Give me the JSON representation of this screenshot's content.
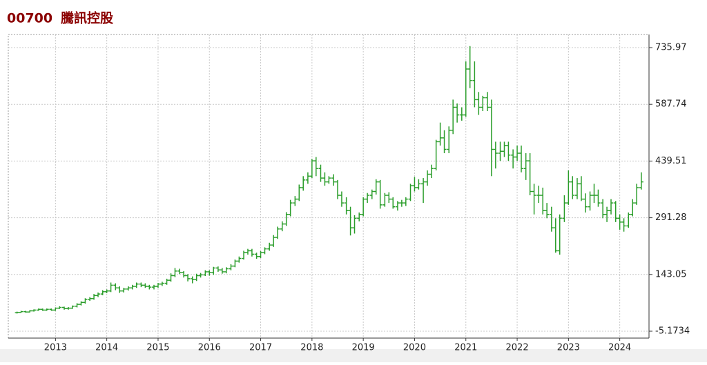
{
  "chart_data": {
    "type": "ohlc",
    "code": "00700",
    "name": "騰訊控股",
    "color": "#2a9d2a",
    "grid": true,
    "ylim": [
      -23.2,
      770.2
    ],
    "xlim": [
      2012.08,
      2024.57
    ],
    "yticks": [
      -5.1734,
      143.05,
      291.28,
      439.51,
      587.74,
      735.97
    ],
    "xticks": [
      2013,
      2014,
      2015,
      2016,
      2017,
      2018,
      2019,
      2020,
      2021,
      2022,
      2023,
      2024
    ],
    "x": [
      2012.25,
      2012.33,
      2012.42,
      2012.5,
      2012.58,
      2012.67,
      2012.75,
      2012.83,
      2012.92,
      2013,
      2013.08,
      2013.17,
      2013.25,
      2013.33,
      2013.42,
      2013.5,
      2013.58,
      2013.67,
      2013.75,
      2013.83,
      2013.92,
      2014,
      2014.08,
      2014.17,
      2014.25,
      2014.33,
      2014.42,
      2014.5,
      2014.58,
      2014.67,
      2014.75,
      2014.83,
      2014.92,
      2015,
      2015.08,
      2015.17,
      2015.25,
      2015.33,
      2015.42,
      2015.5,
      2015.58,
      2015.67,
      2015.75,
      2015.83,
      2015.92,
      2016,
      2016.08,
      2016.17,
      2016.25,
      2016.33,
      2016.42,
      2016.5,
      2016.58,
      2016.67,
      2016.75,
      2016.83,
      2016.92,
      2017,
      2017.08,
      2017.17,
      2017.25,
      2017.33,
      2017.42,
      2017.5,
      2017.58,
      2017.67,
      2017.75,
      2017.83,
      2017.92,
      2018,
      2018.08,
      2018.17,
      2018.25,
      2018.33,
      2018.42,
      2018.5,
      2018.58,
      2018.67,
      2018.75,
      2018.83,
      2018.92,
      2019,
      2019.08,
      2019.17,
      2019.25,
      2019.33,
      2019.42,
      2019.5,
      2019.58,
      2019.67,
      2019.75,
      2019.83,
      2019.92,
      2020,
      2020.08,
      2020.17,
      2020.25,
      2020.33,
      2020.42,
      2020.5,
      2020.58,
      2020.67,
      2020.75,
      2020.83,
      2020.92,
      2021,
      2021.08,
      2021.17,
      2021.25,
      2021.33,
      2021.42,
      2021.5,
      2021.58,
      2021.67,
      2021.75,
      2021.83,
      2021.92,
      2022,
      2022.08,
      2022.17,
      2022.25,
      2022.33,
      2022.42,
      2022.5,
      2022.58,
      2022.67,
      2022.75,
      2022.83,
      2022.92,
      2023,
      2023.08,
      2023.17,
      2023.25,
      2023.33,
      2023.42,
      2023.5,
      2023.58,
      2023.67,
      2023.75,
      2023.83,
      2023.92,
      2024,
      2024.08,
      2024.17,
      2024.25,
      2024.33,
      2024.42
    ],
    "open": [
      43,
      44,
      46,
      45,
      48,
      50,
      52,
      50,
      52,
      50,
      55,
      57,
      54,
      55,
      60,
      65,
      70,
      78,
      80,
      88,
      92,
      98,
      100,
      115,
      108,
      100,
      105,
      108,
      112,
      118,
      115,
      112,
      110,
      112,
      118,
      120,
      128,
      140,
      152,
      148,
      140,
      132,
      130,
      140,
      142,
      150,
      148,
      160,
      155,
      150,
      158,
      165,
      178,
      185,
      200,
      205,
      196,
      190,
      200,
      210,
      220,
      240,
      262,
      275,
      300,
      330,
      340,
      370,
      390,
      400,
      440,
      420,
      395,
      385,
      395,
      385,
      350,
      330,
      310,
      265,
      290,
      300,
      340,
      350,
      360,
      385,
      325,
      350,
      340,
      320,
      330,
      330,
      340,
      375,
      370,
      380,
      385,
      405,
      420,
      490,
      500,
      470,
      520,
      580,
      560,
      560,
      680,
      650,
      600,
      580,
      605,
      580,
      470,
      460,
      465,
      480,
      455,
      450,
      460,
      420,
      440,
      360,
      350,
      350,
      310,
      300,
      265,
      205,
      290,
      330,
      385,
      350,
      380,
      340,
      320,
      350,
      350,
      330,
      300,
      310,
      330,
      290,
      280,
      270,
      300,
      330,
      370
    ],
    "high": [
      46,
      48,
      48,
      50,
      52,
      54,
      54,
      54,
      54,
      57,
      60,
      59,
      58,
      62,
      68,
      73,
      81,
      84,
      92,
      96,
      102,
      104,
      122,
      120,
      112,
      108,
      112,
      116,
      122,
      122,
      120,
      116,
      116,
      121,
      124,
      132,
      146,
      160,
      158,
      152,
      144,
      138,
      145,
      147,
      154,
      154,
      163,
      164,
      160,
      162,
      170,
      182,
      190,
      205,
      210,
      210,
      200,
      204,
      214,
      226,
      246,
      268,
      282,
      306,
      338,
      348,
      378,
      400,
      410,
      445,
      450,
      430,
      410,
      400,
      405,
      390,
      360,
      345,
      320,
      298,
      305,
      345,
      356,
      365,
      392,
      390,
      356,
      358,
      345,
      335,
      338,
      345,
      380,
      398,
      392,
      395,
      415,
      430,
      495,
      540,
      520,
      530,
      600,
      590,
      580,
      700,
      740,
      700,
      620,
      610,
      620,
      600,
      490,
      490,
      490,
      490,
      470,
      480,
      480,
      460,
      460,
      380,
      375,
      370,
      330,
      320,
      290,
      300,
      350,
      415,
      400,
      395,
      400,
      355,
      360,
      380,
      365,
      340,
      320,
      340,
      335,
      300,
      290,
      305,
      340,
      380,
      410
    ],
    "low": [
      41,
      43,
      43,
      44,
      46,
      48,
      48,
      48,
      48,
      48,
      53,
      51,
      51,
      53,
      57,
      62,
      67,
      74,
      77,
      84,
      89,
      94,
      97,
      102,
      95,
      96,
      101,
      104,
      108,
      110,
      108,
      104,
      104,
      108,
      113,
      116,
      124,
      136,
      144,
      135,
      125,
      120,
      126,
      135,
      139,
      140,
      142,
      150,
      145,
      146,
      154,
      162,
      174,
      182,
      195,
      190,
      184,
      186,
      196,
      205,
      215,
      236,
      256,
      270,
      295,
      322,
      335,
      362,
      380,
      395,
      400,
      385,
      375,
      380,
      375,
      340,
      320,
      300,
      245,
      250,
      282,
      295,
      330,
      340,
      352,
      315,
      320,
      330,
      315,
      310,
      320,
      322,
      335,
      360,
      365,
      330,
      375,
      395,
      415,
      480,
      460,
      460,
      510,
      540,
      545,
      555,
      630,
      580,
      560,
      570,
      570,
      400,
      420,
      440,
      450,
      440,
      420,
      440,
      410,
      390,
      350,
      300,
      330,
      300,
      290,
      255,
      200,
      195,
      280,
      325,
      340,
      340,
      335,
      305,
      310,
      330,
      320,
      290,
      280,
      300,
      280,
      260,
      255,
      265,
      295,
      325,
      365
    ],
    "close": [
      44,
      46,
      45,
      48,
      50,
      52,
      50,
      52,
      50,
      55,
      57,
      54,
      55,
      60,
      65,
      70,
      78,
      80,
      88,
      92,
      98,
      100,
      115,
      108,
      100,
      105,
      108,
      112,
      118,
      115,
      112,
      110,
      112,
      118,
      120,
      128,
      140,
      152,
      148,
      140,
      132,
      130,
      140,
      142,
      150,
      148,
      160,
      155,
      150,
      158,
      165,
      178,
      185,
      200,
      205,
      196,
      190,
      200,
      210,
      220,
      240,
      262,
      275,
      300,
      330,
      340,
      370,
      390,
      400,
      440,
      420,
      395,
      385,
      395,
      385,
      350,
      330,
      310,
      265,
      290,
      300,
      340,
      350,
      360,
      385,
      325,
      350,
      340,
      320,
      330,
      330,
      340,
      375,
      370,
      380,
      385,
      405,
      420,
      490,
      500,
      470,
      520,
      580,
      560,
      560,
      680,
      650,
      600,
      580,
      605,
      580,
      470,
      460,
      465,
      480,
      455,
      450,
      460,
      420,
      440,
      360,
      350,
      350,
      310,
      300,
      265,
      205,
      290,
      330,
      385,
      350,
      380,
      340,
      320,
      350,
      350,
      330,
      300,
      310,
      330,
      290,
      280,
      270,
      300,
      330,
      370,
      385
    ]
  }
}
